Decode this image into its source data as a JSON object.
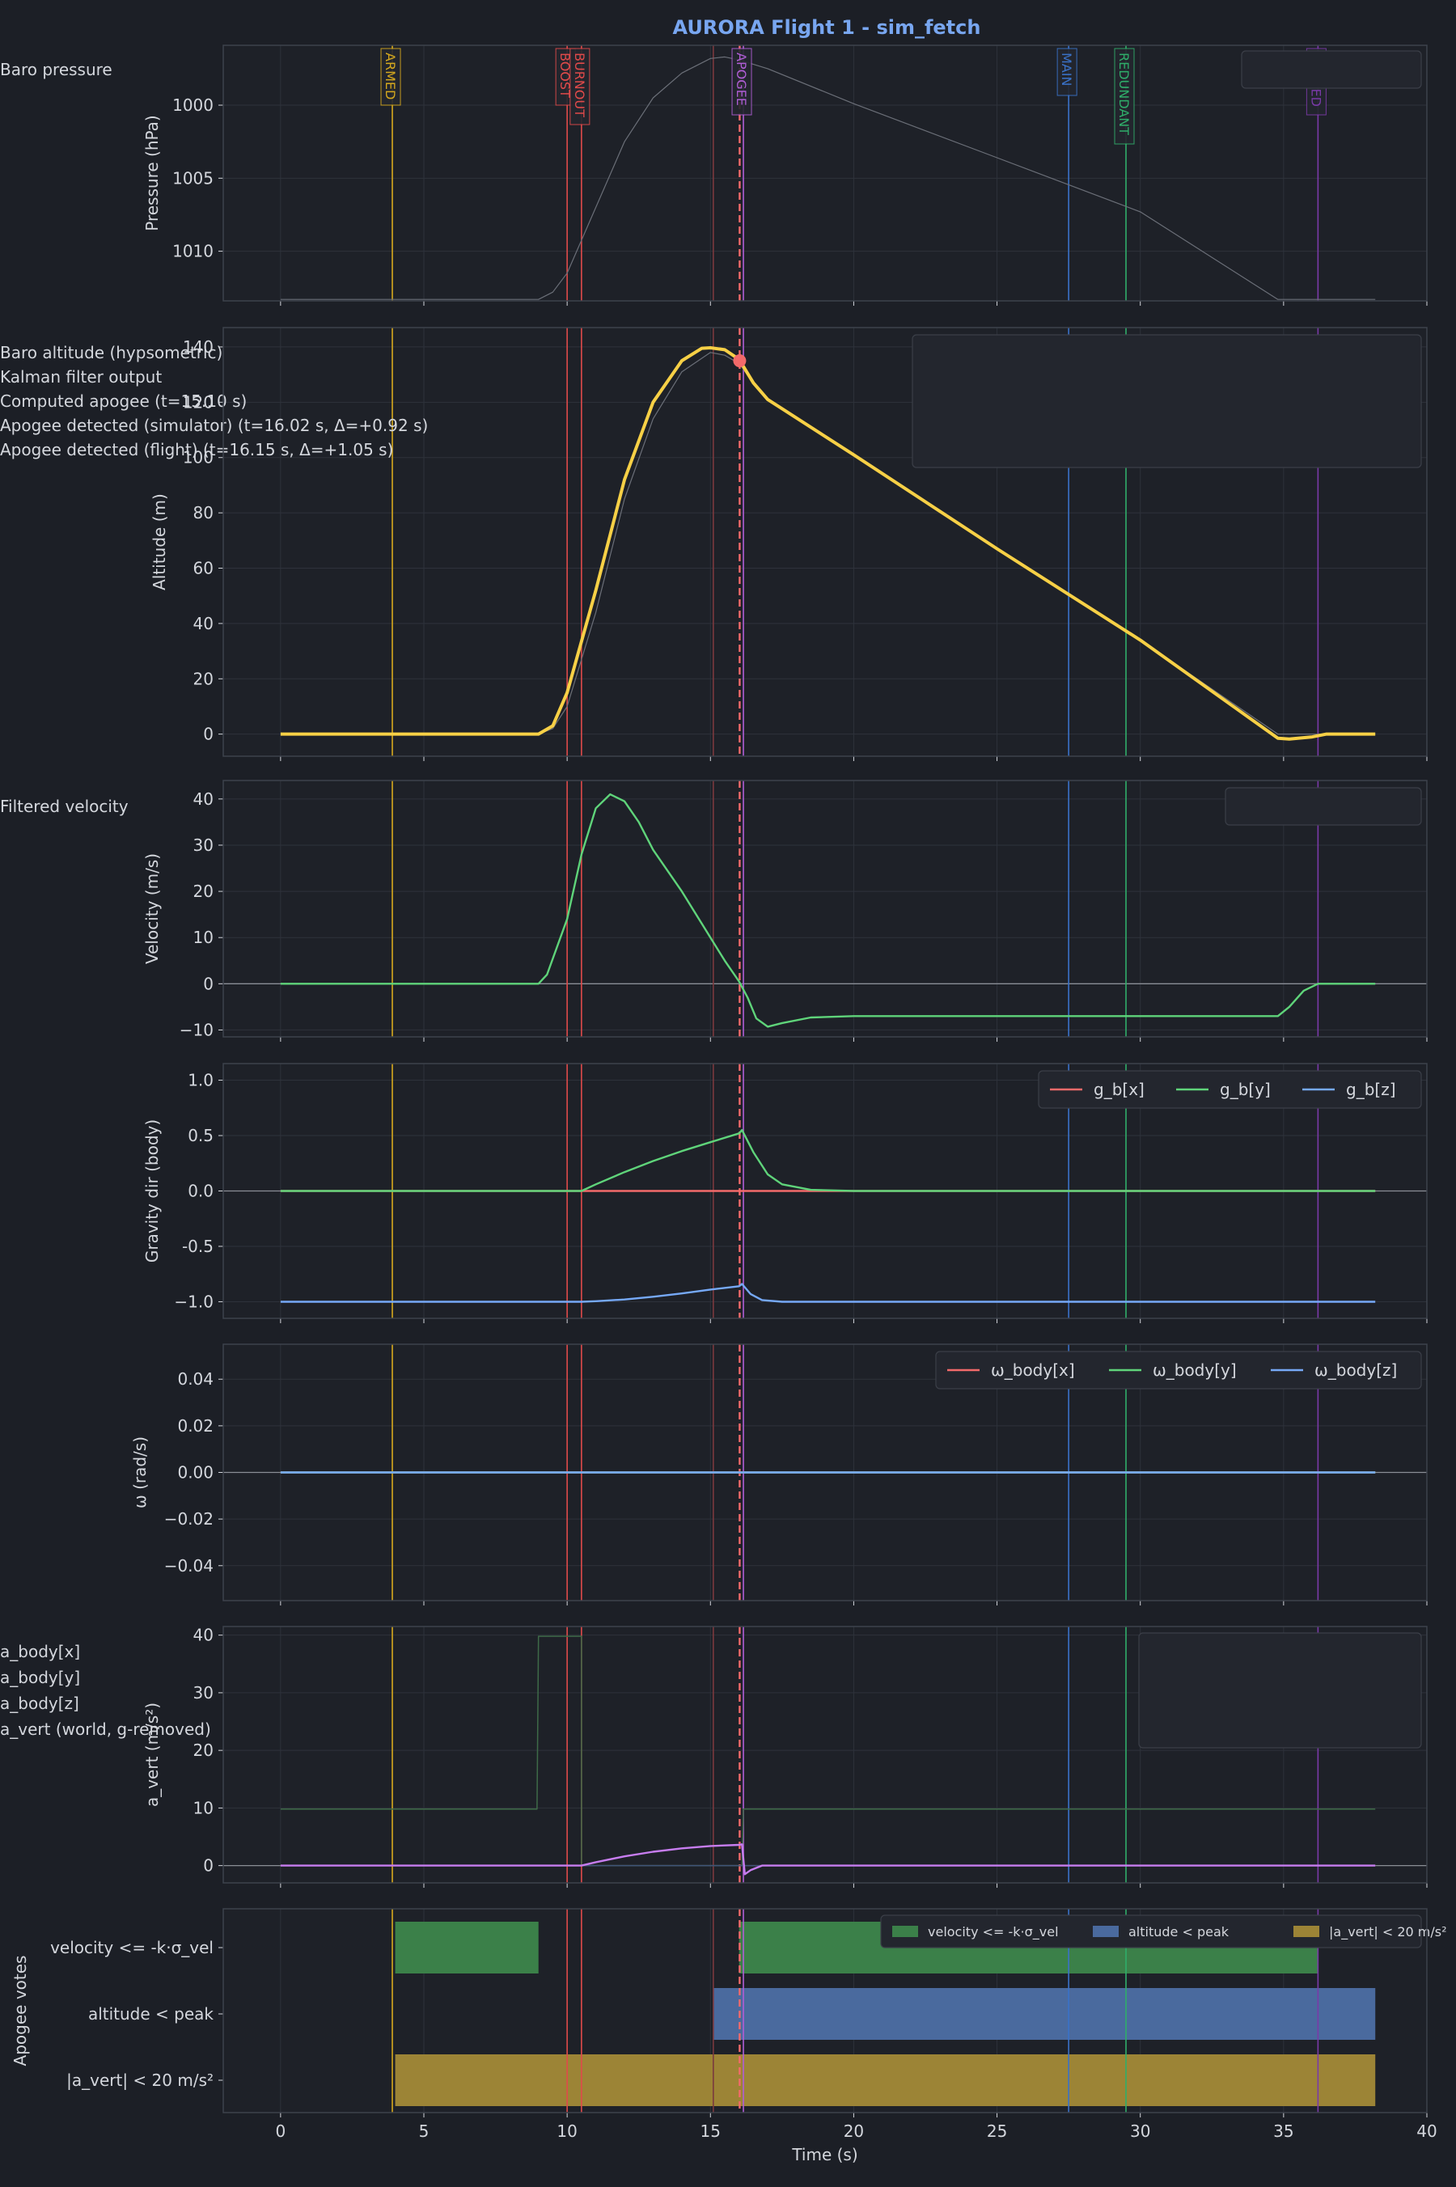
{
  "title": "AURORA Flight 1 - sim_fetch",
  "colors": {
    "background": "#1c1f26",
    "panel": "#1e2128",
    "grid": "#2e323b",
    "axis": "#3d424c",
    "text": "#d4d7dd",
    "title": "#78a6f0",
    "baro": "#6b6f78",
    "kalman": "#f7d046",
    "red": "#f36a6a",
    "green": "#5fd47a",
    "blue": "#76a9f7",
    "purple": "#c77df0",
    "armed": "#d6a91e",
    "boost": "#e04a4a",
    "apogee_flight": "#b05ed6",
    "main": "#3a72c8",
    "redundant": "#2fae6a",
    "landed": "#7a3aa8",
    "vote_velocity": "#3b8049",
    "vote_altitude": "#4a6a9e",
    "vote_avert": "#9c8436"
  },
  "chart_data": {
    "type": "line",
    "x_axis": {
      "label": "Time (s)",
      "range": [
        -2,
        40
      ],
      "ticks": [
        0,
        5,
        10,
        15,
        20,
        25,
        30,
        35,
        40
      ]
    },
    "events": [
      {
        "name": "ARMED",
        "t": 3.9,
        "label_placement": "top"
      },
      {
        "name": "BOOST",
        "t": 10.0,
        "label_placement": "top"
      },
      {
        "name": "BURNOUT",
        "t": 10.5,
        "label_placement": "top"
      },
      {
        "name": "COMPUTED_APOGEE",
        "t": 15.1,
        "label_placement": "none"
      },
      {
        "name": "APOGEE_SIM",
        "t": 16.02,
        "label_placement": "none"
      },
      {
        "name": "APOGEE",
        "t": 16.15,
        "label_placement": "top"
      },
      {
        "name": "MAIN",
        "t": 27.5,
        "label_placement": "top"
      },
      {
        "name": "REDUNDANT",
        "t": 29.5,
        "label_placement": "top"
      },
      {
        "name": "LANDED",
        "t": 36.2,
        "label_placement": "top"
      }
    ],
    "panels": [
      {
        "id": "pressure",
        "ylabel": "Pressure (hPa)",
        "ylim": [
          1013.4,
          995.9
        ],
        "yticks": [
          1000,
          1005,
          1010
        ],
        "legend": [
          "Baro pressure"
        ],
        "series": [
          {
            "name": "Baro pressure",
            "points": [
              [
                0,
                1013.3
              ],
              [
                9,
                1013.3
              ],
              [
                9.5,
                1012.8
              ],
              [
                10,
                1011.5
              ],
              [
                11,
                1007
              ],
              [
                12,
                1002.5
              ],
              [
                13,
                999.5
              ],
              [
                14,
                997.8
              ],
              [
                15,
                996.8
              ],
              [
                15.5,
                996.7
              ],
              [
                16,
                996.9
              ],
              [
                17,
                997.5
              ],
              [
                20,
                999.9
              ],
              [
                25,
                1003.6
              ],
              [
                30,
                1007.3
              ],
              [
                34.8,
                1013.3
              ],
              [
                38.2,
                1013.3
              ]
            ]
          }
        ]
      },
      {
        "id": "altitude",
        "ylabel": "Altitude (m)",
        "ylim": [
          -8,
          147
        ],
        "yticks": [
          0,
          20,
          40,
          60,
          80,
          100,
          120,
          140
        ],
        "legend": [
          "Baro altitude (hypsometric)",
          "Kalman filter output",
          "Computed apogee (t=15.10 s)",
          "Apogee detected (simulator) (t=16.02 s, Δ=+0.92 s)",
          "Apogee detected (flight) (t=16.15 s, Δ=+1.05 s)"
        ],
        "apogee_marker": [
          16.02,
          135
        ],
        "series": [
          {
            "name": "Baro altitude (hypsometric)",
            "points": [
              [
                0,
                0
              ],
              [
                9,
                0
              ],
              [
                9.5,
                2
              ],
              [
                10,
                10
              ],
              [
                11,
                44
              ],
              [
                12,
                85
              ],
              [
                13,
                114
              ],
              [
                14,
                131
              ],
              [
                15,
                138
              ],
              [
                15.5,
                137
              ],
              [
                16,
                134
              ],
              [
                16.5,
                127
              ],
              [
                17,
                121
              ],
              [
                20,
                101
              ],
              [
                25,
                67
              ],
              [
                30,
                34
              ],
              [
                34.8,
                0
              ],
              [
                38.2,
                0
              ]
            ]
          },
          {
            "name": "Kalman filter output",
            "points": [
              [
                0,
                0
              ],
              [
                9,
                0
              ],
              [
                9.5,
                3
              ],
              [
                10,
                15
              ],
              [
                11,
                52
              ],
              [
                12,
                92
              ],
              [
                13,
                120
              ],
              [
                14,
                135
              ],
              [
                14.7,
                139.5
              ],
              [
                15,
                139.7
              ],
              [
                15.5,
                139
              ],
              [
                16,
                135.5
              ],
              [
                16.5,
                127
              ],
              [
                17,
                121
              ],
              [
                20,
                101
              ],
              [
                25,
                67
              ],
              [
                30,
                34
              ],
              [
                34.8,
                -1.5
              ],
              [
                35.2,
                -1.8
              ],
              [
                36,
                -1
              ],
              [
                36.5,
                0
              ],
              [
                38.2,
                0
              ]
            ]
          }
        ]
      },
      {
        "id": "velocity",
        "ylabel": "Velocity (m/s)",
        "ylim": [
          -11.5,
          44
        ],
        "yticks": [
          -10,
          0,
          10,
          20,
          30,
          40
        ],
        "legend": [
          "Filtered velocity"
        ],
        "zero_line": true,
        "series": [
          {
            "name": "Filtered velocity",
            "points": [
              [
                0,
                0
              ],
              [
                9,
                0
              ],
              [
                9.3,
                2
              ],
              [
                10,
                14
              ],
              [
                10.5,
                28
              ],
              [
                11,
                38
              ],
              [
                11.5,
                41
              ],
              [
                12,
                39.5
              ],
              [
                12.5,
                35
              ],
              [
                13,
                29
              ],
              [
                14,
                20
              ],
              [
                15,
                10
              ],
              [
                15.5,
                5
              ],
              [
                16,
                0.5
              ],
              [
                16.3,
                -3
              ],
              [
                16.6,
                -7.5
              ],
              [
                17,
                -9.3
              ],
              [
                17.5,
                -8.5
              ],
              [
                18.5,
                -7.3
              ],
              [
                20,
                -7
              ],
              [
                34.8,
                -7
              ],
              [
                35.2,
                -5
              ],
              [
                35.7,
                -1.5
              ],
              [
                36.2,
                0
              ],
              [
                38.2,
                0
              ]
            ]
          }
        ]
      },
      {
        "id": "gravity",
        "ylabel": "Gravity dir (body)",
        "ylim": [
          -1.15,
          1.15
        ],
        "yticks": [
          -1.0,
          -0.5,
          0.0,
          0.5,
          1.0
        ],
        "legend": [
          "g_b[x]",
          "g_b[y]",
          "g_b[z]"
        ],
        "zero_line": true,
        "series": [
          {
            "name": "g_b[x]",
            "points": [
              [
                0,
                0
              ],
              [
                38.2,
                0
              ]
            ]
          },
          {
            "name": "g_b[y]",
            "points": [
              [
                0,
                0
              ],
              [
                10.5,
                0
              ],
              [
                11,
                0.06
              ],
              [
                12,
                0.17
              ],
              [
                13,
                0.27
              ],
              [
                14,
                0.36
              ],
              [
                15,
                0.44
              ],
              [
                16,
                0.52
              ],
              [
                16.1,
                0.55
              ],
              [
                16.5,
                0.35
              ],
              [
                17,
                0.15
              ],
              [
                17.5,
                0.06
              ],
              [
                18.5,
                0.01
              ],
              [
                20,
                0
              ],
              [
                38.2,
                0
              ]
            ]
          },
          {
            "name": "g_b[z]",
            "points": [
              [
                0,
                -1
              ],
              [
                10.5,
                -1
              ],
              [
                11,
                -0.995
              ],
              [
                12,
                -0.98
              ],
              [
                13,
                -0.955
              ],
              [
                14,
                -0.925
              ],
              [
                15,
                -0.89
              ],
              [
                16,
                -0.86
              ],
              [
                16.1,
                -0.84
              ],
              [
                16.4,
                -0.93
              ],
              [
                16.8,
                -0.985
              ],
              [
                17.5,
                -1
              ],
              [
                38.2,
                -1
              ]
            ]
          }
        ]
      },
      {
        "id": "omega",
        "ylabel": "ω (rad/s)",
        "ylim": [
          -0.055,
          0.055
        ],
        "yticks": [
          -0.04,
          -0.02,
          0.0,
          0.02,
          0.04
        ],
        "ytick_labels": [
          "−0.04",
          "−0.02",
          "0.00",
          "0.02",
          "0.04"
        ],
        "legend": [
          "ω_body[x]",
          "ω_body[y]",
          "ω_body[z]"
        ],
        "zero_line": true,
        "series": [
          {
            "name": "ω_body[x]",
            "points": [
              [
                0,
                0
              ],
              [
                38.2,
                0
              ]
            ]
          },
          {
            "name": "ω_body[y]",
            "points": [
              [
                0,
                0
              ],
              [
                38.2,
                0
              ]
            ]
          },
          {
            "name": "ω_body[z]",
            "points": [
              [
                0,
                0
              ],
              [
                38.2,
                0
              ]
            ]
          }
        ]
      },
      {
        "id": "avert",
        "ylabel": "a_vert (m/s²)",
        "ylim": [
          -3,
          41.5
        ],
        "yticks": [
          0,
          10,
          20,
          30,
          40
        ],
        "legend": [
          "a_body[x]",
          "a_body[y]",
          "a_body[z]",
          "a_vert (world, g-removed)"
        ],
        "zero_line": true,
        "series": [
          {
            "name": "a_body[x]",
            "points": [
              [
                0,
                0
              ],
              [
                38.2,
                0
              ]
            ]
          },
          {
            "name": "a_body[y]",
            "points": [
              [
                0,
                9.8
              ],
              [
                8.95,
                9.8
              ],
              [
                9.0,
                39.8
              ],
              [
                10.5,
                39.8
              ],
              [
                10.5,
                0
              ],
              [
                16.1,
                0
              ],
              [
                16.15,
                9.8
              ],
              [
                38.2,
                9.8
              ]
            ]
          },
          {
            "name": "a_body[z]",
            "points": [
              [
                0,
                0
              ],
              [
                38.2,
                0
              ]
            ]
          },
          {
            "name": "a_vert (world, g-removed)",
            "points": [
              [
                0,
                0
              ],
              [
                10.5,
                0
              ],
              [
                11,
                0.6
              ],
              [
                12,
                1.6
              ],
              [
                13,
                2.4
              ],
              [
                14,
                3.0
              ],
              [
                15,
                3.4
              ],
              [
                16,
                3.6
              ],
              [
                16.1,
                3.7
              ],
              [
                16.2,
                -1.5
              ],
              [
                16.4,
                -0.8
              ],
              [
                16.8,
                0
              ],
              [
                38.2,
                0
              ]
            ]
          }
        ]
      },
      {
        "id": "votes",
        "ylabel": "Apogee votes",
        "legend": [
          "velocity <= -k·σ_vel",
          "altitude < peak",
          "|a_vert| < 20 m/s²"
        ],
        "rows": [
          {
            "label": "velocity <= -k·σ_vel",
            "intervals": [
              [
                4.0,
                9.0
              ],
              [
                16.0,
                36.2
              ]
            ]
          },
          {
            "label": "altitude < peak",
            "intervals": [
              [
                15.1,
                38.2
              ]
            ]
          },
          {
            "label": "|a_vert| < 20 m/s²",
            "intervals": [
              [
                4.0,
                38.2
              ]
            ]
          }
        ]
      }
    ]
  }
}
